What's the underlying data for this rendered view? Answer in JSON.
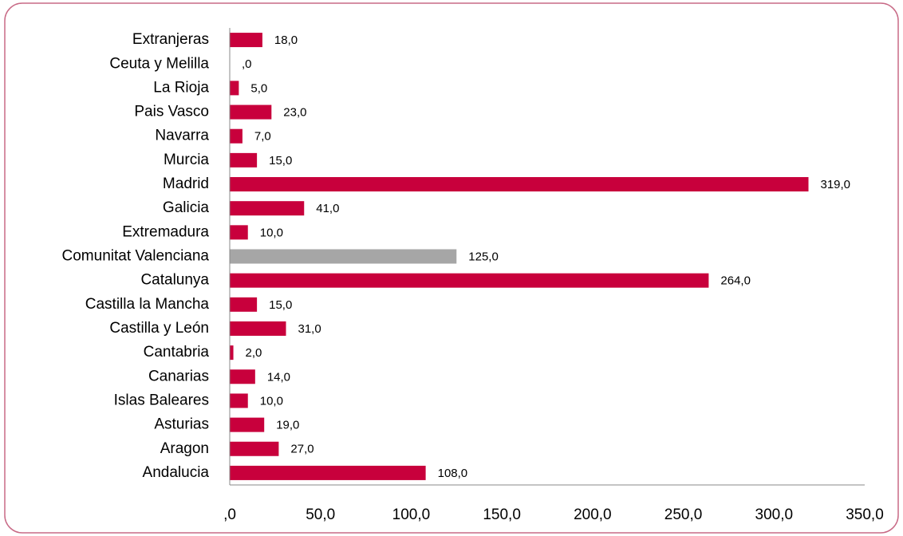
{
  "chart_data": {
    "type": "bar",
    "orientation": "horizontal",
    "categories": [
      "Extranjeras",
      "Ceuta y Melilla",
      "La Rioja",
      "Pais Vasco",
      "Navarra",
      "Murcia",
      "Madrid",
      "Galicia",
      "Extremadura",
      "Comunitat Valenciana",
      "Catalunya",
      "Castilla la Mancha",
      "Castilla y León",
      "Cantabria",
      "Canarias",
      "Islas Baleares",
      "Asturias",
      "Aragon",
      "Andalucia"
    ],
    "values": [
      18,
      0,
      5,
      23,
      7,
      15,
      319,
      41,
      10,
      125,
      264,
      15,
      31,
      2,
      14,
      10,
      19,
      27,
      108
    ],
    "value_labels": [
      "18,0",
      ",0",
      "5,0",
      "23,0",
      "7,0",
      "15,0",
      "319,0",
      "41,0",
      "10,0",
      "125,0",
      "264,0",
      "15,0",
      "31,0",
      "2,0",
      "14,0",
      "10,0",
      "19,0",
      "27,0",
      "108,0"
    ],
    "colors": [
      "#c8003c",
      "#c8003c",
      "#c8003c",
      "#c8003c",
      "#c8003c",
      "#c8003c",
      "#c8003c",
      "#c8003c",
      "#c8003c",
      "#a6a6a6",
      "#c8003c",
      "#c8003c",
      "#c8003c",
      "#c8003c",
      "#c8003c",
      "#c8003c",
      "#c8003c",
      "#c8003c",
      "#c8003c"
    ],
    "xlim": [
      0,
      350
    ],
    "xticks": [
      {
        "value": 0,
        "label": ",0"
      },
      {
        "value": 50,
        "label": "50,0"
      },
      {
        "value": 100,
        "label": "100,0"
      },
      {
        "value": 150,
        "label": "150,0"
      },
      {
        "value": 200,
        "label": "200,0"
      },
      {
        "value": 250,
        "label": "250,0"
      },
      {
        "value": 300,
        "label": "300,0"
      },
      {
        "value": 350,
        "label": "350,0"
      }
    ],
    "grid": false
  }
}
